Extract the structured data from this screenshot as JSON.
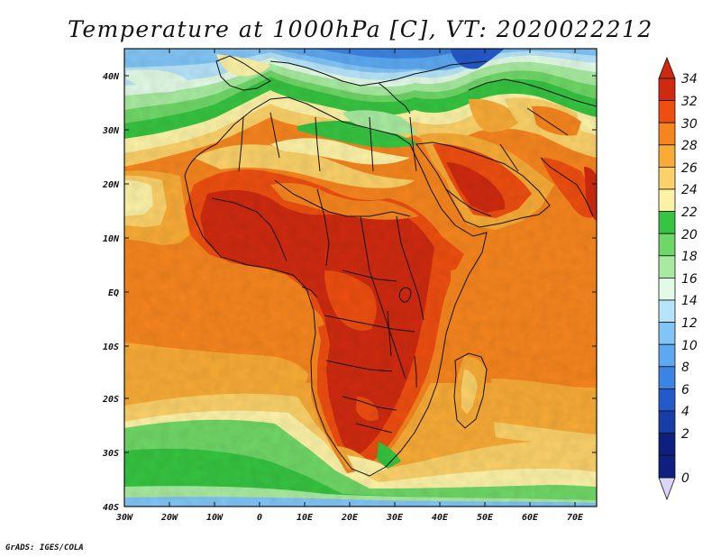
{
  "title": "Temperature at 1000hPa [C], VT: 2020022212",
  "credit": "GrADS: IGES/COLA",
  "map": {
    "lat_ticks": [
      "40N",
      "30N",
      "20N",
      "10N",
      "EQ",
      "10S",
      "20S",
      "30S",
      "40S"
    ],
    "lon_ticks": [
      "30W",
      "20W",
      "10W",
      "0",
      "10E",
      "20E",
      "30E",
      "40E",
      "50E",
      "60E",
      "70E"
    ]
  },
  "colorbar": {
    "levels": [
      "34",
      "32",
      "30",
      "28",
      "26",
      "24",
      "22",
      "20",
      "18",
      "16",
      "14",
      "12",
      "10",
      "8",
      "6",
      "4",
      "2",
      "0"
    ],
    "colors": {
      "32-34": "#cf2a10",
      "30-32": "#ee4e10",
      "28-30": "#f6851e",
      "26-28": "#f8ab36",
      "24-26": "#fbd169",
      "22-24": "#fdf2a6",
      "20-22": "#36c441",
      "18-20": "#6fd767",
      "16-18": "#a8eba0",
      "14-16": "#e2fbe6",
      "12-14": "#b7e4fb",
      "10-12": "#81c5f7",
      "8-10": "#5da8f1",
      "6-8": "#3c84e4",
      "4-6": "#2459ca",
      "2-4": "#173ea8",
      "0-2": "#0e1f80",
      "above": "#cf2a10",
      "below": "#dcd6f6"
    }
  }
}
